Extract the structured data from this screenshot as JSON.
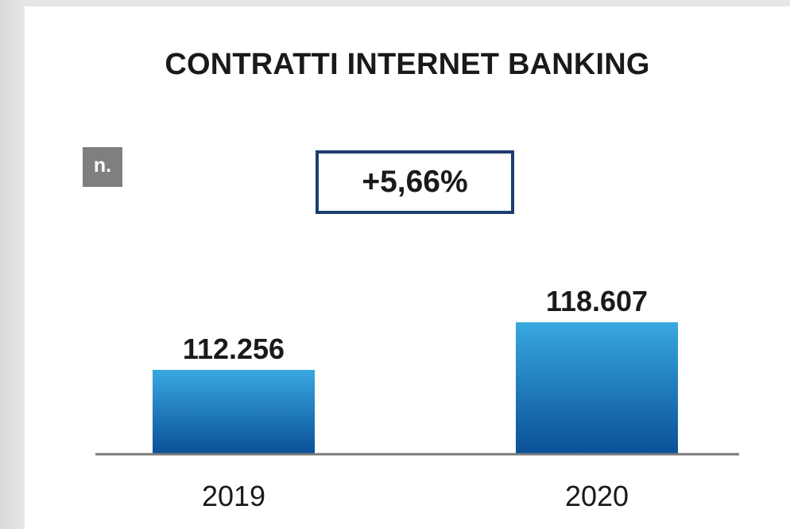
{
  "title": "CONTRATTI INTERNET BANKING",
  "unit": "n.",
  "delta": "+5,66%",
  "colors": {
    "bar_top": "#38a8e0",
    "bar_bottom": "#0a4f98",
    "axis": "#7a7a7a",
    "delta_border": "#1d3e6e",
    "unit_badge": "#7f7f7f"
  },
  "chart_data": {
    "type": "bar",
    "categories": [
      "2019",
      "2020"
    ],
    "values": [
      112256,
      118607
    ],
    "value_labels": [
      "112.256",
      "118.607"
    ],
    "title": "CONTRATTI INTERNET BANKING",
    "ylabel": "n.",
    "grid": false
  }
}
